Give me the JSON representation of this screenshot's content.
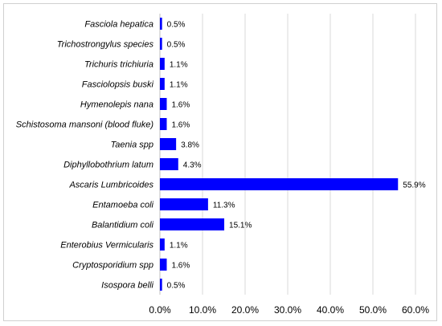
{
  "colors": {
    "bar": "#0000ff",
    "grid": "#d9d9d9"
  },
  "chart_data": {
    "type": "bar",
    "orientation": "horizontal",
    "title": "",
    "xlabel": "",
    "ylabel": "",
    "xlim": [
      0,
      60
    ],
    "grid": true,
    "categories": [
      "Fasciola hepatica",
      "Trichostrongylus species",
      "Trichuris trichiuria",
      "Fasciolopsis buski",
      "Hymenolepis nana",
      "Schistosoma mansoni (blood fluke)",
      "Taenia spp",
      "Diphyllobothrium latum",
      "Ascaris Lumbricoides",
      "Entamoeba coli",
      "Balantidium coli",
      "Enterobius Vermicularis",
      "Cryptosporidium spp",
      "Isospora belli"
    ],
    "values": [
      0.5,
      0.5,
      1.1,
      1.1,
      1.6,
      1.6,
      3.8,
      4.3,
      55.9,
      11.3,
      15.1,
      1.1,
      1.6,
      0.5
    ],
    "value_labels": [
      "0.5%",
      "0.5%",
      "1.1%",
      "1.1%",
      "1.6%",
      "1.6%",
      "3.8%",
      "4.3%",
      "55.9%",
      "11.3%",
      "15.1%",
      "1.1%",
      "1.6%",
      "0.5%"
    ],
    "ticks": [
      0,
      10,
      20,
      30,
      40,
      50,
      60
    ],
    "tick_labels": [
      "0.0%",
      "10.0%",
      "20.0%",
      "30.0%",
      "40.0%",
      "50.0%",
      "60.0%"
    ]
  }
}
